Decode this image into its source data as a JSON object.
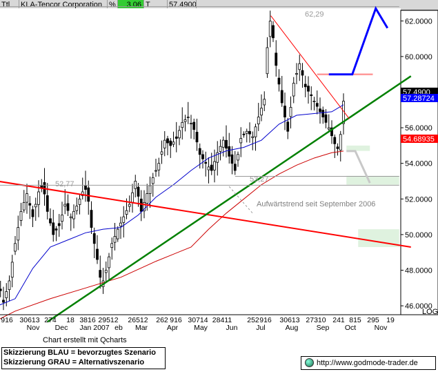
{
  "header": {
    "code": "Ttl",
    "name": "KLA-Tencor Corporation",
    "pct_symbol": "%",
    "pct_value": "3.06",
    "flag": "T",
    "last_price": "57.4900"
  },
  "colors": {
    "candle": "#000000",
    "ma_blue": "#0000cc",
    "ma_red": "#cc0000",
    "trend_green": "#008000",
    "resistance_red": "#ff0000",
    "scenario_blue": "#0000ff",
    "scenario_grey": "#c8c8c8",
    "zone_green": "#dff2df",
    "price_box": "#000000",
    "blue_box": "#0000ff",
    "red_box": "#ff0000"
  },
  "chart_data": {
    "type": "candlestick",
    "instrument": "KLA-Tencor Corporation",
    "ylim": [
      45.5,
      63.0
    ],
    "yticks": [
      "46.0000",
      "48.0000",
      "50.0000",
      "52.0000",
      "54.0000",
      "56.0000",
      "58.0000",
      "60.0000",
      "62.0000"
    ],
    "ylabel_scale": "LOG",
    "x_day_labels": [
      "916",
      "30613",
      "274",
      "18",
      "3816",
      "29512",
      "26512",
      "262",
      "916",
      "30714",
      "28411",
      "252",
      "916",
      "30613",
      "27310",
      "241",
      "815",
      "295",
      "19"
    ],
    "x_month_labels": [
      "Nov",
      "Dec",
      "Jan 2007",
      "eb",
      "Mar",
      "Apr",
      "May",
      "Jun",
      "Jul",
      "Aug",
      "Sep",
      "Oct",
      "Nov"
    ],
    "price_boxes": [
      "57.4900",
      "57.28724",
      "54.68935"
    ],
    "annotations": [
      "62,29",
      "52,77",
      "53,27",
      "Aufwärtstrend seit September 2006"
    ],
    "close_path": [
      [
        -6,
        47.5
      ],
      [
        -4,
        46.2
      ],
      [
        -2,
        47.4
      ],
      [
        0,
        49.5
      ],
      [
        2,
        51.3
      ],
      [
        4,
        52.3
      ],
      [
        6,
        51.0
      ],
      [
        8,
        52.4
      ],
      [
        9.5,
        52.77
      ],
      [
        11,
        51.3
      ],
      [
        13,
        50.0
      ],
      [
        15,
        50.5
      ],
      [
        17,
        51.7
      ],
      [
        19,
        51.0
      ],
      [
        21,
        51.6
      ],
      [
        23,
        52.4
      ],
      [
        24.5,
        52.6
      ],
      [
        26,
        50.4
      ],
      [
        28,
        48.6
      ],
      [
        29.5,
        47.1
      ],
      [
        31,
        48.0
      ],
      [
        33,
        49.5
      ],
      [
        35,
        50.3
      ],
      [
        37,
        51.0
      ],
      [
        39,
        51.7
      ],
      [
        41,
        53.0
      ],
      [
        43,
        51.3
      ],
      [
        45,
        52.3
      ],
      [
        47,
        53.2
      ],
      [
        49,
        54.0
      ],
      [
        51,
        55.3
      ],
      [
        53,
        55.0
      ],
      [
        55,
        55.4
      ],
      [
        57,
        56.3
      ],
      [
        59,
        56.6
      ],
      [
        61,
        55.9
      ],
      [
        63,
        54.5
      ],
      [
        65,
        54.0
      ],
      [
        67,
        53.6
      ],
      [
        69,
        54.6
      ],
      [
        71,
        55.3
      ],
      [
        73,
        54.4
      ],
      [
        75,
        53.6
      ],
      [
        77,
        55.4
      ],
      [
        79,
        55.8
      ],
      [
        81,
        55.5
      ],
      [
        83,
        56.6
      ],
      [
        85,
        57.6
      ],
      [
        86,
        60.5
      ],
      [
        87.2,
        62.29
      ],
      [
        89,
        59.5
      ],
      [
        91,
        57.4
      ],
      [
        93,
        55.8
      ],
      [
        95,
        58.5
      ],
      [
        97,
        59.6
      ],
      [
        99,
        58.3
      ],
      [
        101,
        57.8
      ],
      [
        103,
        57.2
      ],
      [
        105,
        56.6
      ],
      [
        107,
        56.0
      ],
      [
        109,
        55.1
      ],
      [
        110.5,
        54.69
      ],
      [
        112,
        57.49
      ]
    ],
    "moving_averages": [
      {
        "name": "ma_blue",
        "points": [
          [
            -6,
            46.0
          ],
          [
            0,
            46.4
          ],
          [
            6,
            48.1
          ],
          [
            12,
            49.3
          ],
          [
            18,
            49.7
          ],
          [
            24,
            50.1
          ],
          [
            30,
            50.3
          ],
          [
            36,
            50.4
          ],
          [
            42,
            51.1
          ],
          [
            48,
            52.1
          ],
          [
            54,
            52.8
          ],
          [
            60,
            53.6
          ],
          [
            66,
            54.3
          ],
          [
            72,
            54.7
          ],
          [
            78,
            54.9
          ],
          [
            84,
            55.3
          ],
          [
            90,
            56.2
          ],
          [
            96,
            56.7
          ],
          [
            102,
            56.8
          ],
          [
            108,
            56.9
          ],
          [
            112,
            57.29
          ]
        ]
      },
      {
        "name": "ma_red",
        "points": [
          [
            -6,
            45.2
          ],
          [
            0,
            45.7
          ],
          [
            12,
            46.4
          ],
          [
            24,
            47.0
          ],
          [
            36,
            47.6
          ],
          [
            48,
            48.5
          ],
          [
            60,
            49.3
          ],
          [
            66,
            50.3
          ],
          [
            72,
            51.2
          ],
          [
            78,
            52.0
          ],
          [
            84,
            52.8
          ],
          [
            90,
            53.4
          ],
          [
            96,
            53.9
          ],
          [
            102,
            54.3
          ],
          [
            108,
            54.6
          ],
          [
            112,
            54.69
          ]
        ]
      }
    ],
    "lines": [
      {
        "name": "long-term-downtrend",
        "color": "red",
        "points": [
          [
            -6,
            53.0
          ],
          [
            135,
            49.3
          ]
        ]
      },
      {
        "name": "uptrend-since-sep-2006",
        "color": "green",
        "points": [
          [
            11,
            45.1
          ],
          [
            135,
            58.9
          ]
        ]
      },
      {
        "name": "short-term-resistance",
        "color": "red",
        "points": [
          [
            87.2,
            62.29
          ],
          [
            114,
            56.5
          ]
        ]
      },
      {
        "name": "horizontal-level-62",
        "color": "grey",
        "points": [
          [
            -6,
            62.8
          ],
          [
            131,
            62.8
          ]
        ]
      },
      {
        "name": "horizontal-level-52.77",
        "color": "grey",
        "points": [
          [
            -6,
            52.77
          ],
          [
            131,
            52.77
          ]
        ]
      },
      {
        "name": "horizontal-level-53.27",
        "color": "grey",
        "points": [
          [
            75,
            53.27
          ],
          [
            131,
            53.27
          ]
        ]
      },
      {
        "name": "resistance-59",
        "color": "pink",
        "points": [
          [
            103,
            59.0
          ],
          [
            122,
            59.0
          ]
        ]
      }
    ],
    "scenarios": [
      {
        "name": "bevorzugtes Szenario",
        "color": "blue",
        "points": [
          [
            107,
            59.0
          ],
          [
            115,
            59.0
          ],
          [
            123,
            62.7
          ],
          [
            127,
            61.6
          ]
        ]
      },
      {
        "name": "Alternativszenario",
        "color": "grey",
        "points": [
          [
            113,
            54.69
          ],
          [
            116,
            54.69
          ],
          [
            121,
            52.9
          ]
        ]
      }
    ],
    "zones": [
      {
        "name": "target-zone-top",
        "x": [
          113,
          121
        ],
        "y": [
          54.7,
          55.0
        ]
      },
      {
        "name": "target-zone-mid",
        "x": [
          113,
          131
        ],
        "y": [
          52.8,
          53.3
        ]
      },
      {
        "name": "target-zone-low",
        "x": [
          117,
          131
        ],
        "y": [
          49.3,
          50.3
        ]
      }
    ]
  },
  "footer": {
    "credit": "Chart erstellt mit Qcharts",
    "legend_blue": "Skizzierung BLAU = bevorzugtes Szenario",
    "legend_grey": "Skizzierung GRAU = Alternativszenario",
    "url": "http://www.godmode-trader.de"
  }
}
